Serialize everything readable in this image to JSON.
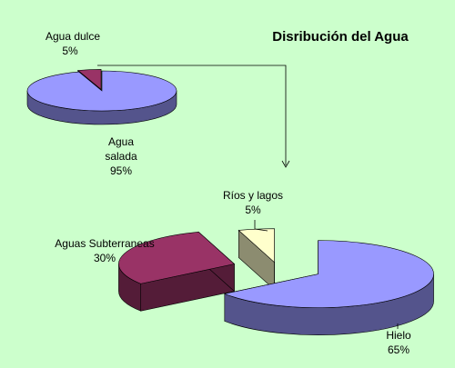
{
  "chart_data": [
    {
      "type": "pie",
      "title": "Disribución del Agua",
      "slices": [
        {
          "label": "Agua dulce",
          "value": 5,
          "value_label": "5%",
          "color": "#993366"
        },
        {
          "label": "Agua salada",
          "value": 95,
          "value_label": "95%",
          "color": "#9999ff"
        }
      ]
    },
    {
      "type": "pie",
      "slices": [
        {
          "label": "Hielo",
          "value": 65,
          "value_label": "65%",
          "color": "#9999ff"
        },
        {
          "label": "Aguas Subterraneas",
          "value": 30,
          "value_label": "30%",
          "color": "#993366"
        },
        {
          "label": "Ríos y lagos",
          "value": 5,
          "value_label": "5%",
          "color": "#ffffcc"
        }
      ]
    }
  ],
  "labels": {
    "agua_dulce": "Agua dulce",
    "agua_dulce_pct": "5%",
    "agua_salada_l1": "Agua",
    "agua_salada_l2": "salada",
    "agua_salada_pct": "95%",
    "rios": "Ríos y lagos",
    "rios_pct": "5%",
    "subterraneas": "Aguas Subterraneas",
    "subterraneas_pct": "30%",
    "hielo": "Hielo",
    "hielo_pct": "65%"
  }
}
